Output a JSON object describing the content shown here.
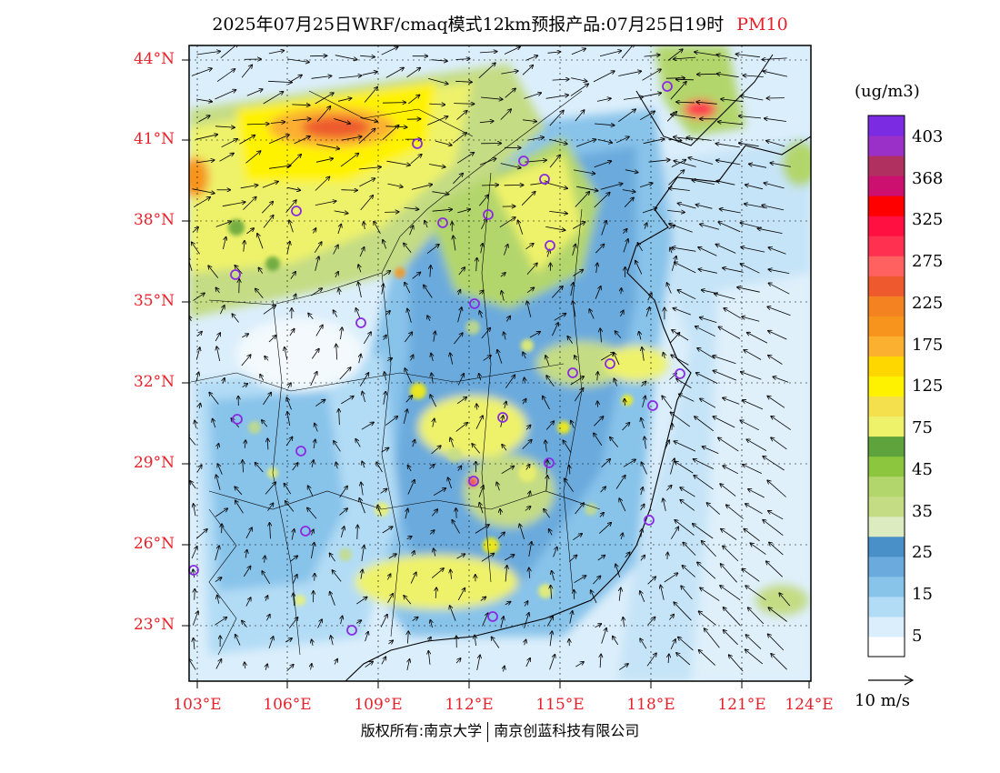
{
  "title": {
    "main": "2025年07月25日WRF/cmaq模式12km预报产品:07月25日19时",
    "pollutant": "PM10"
  },
  "colors": {
    "accent_red": "#e8202a",
    "station_marker": "#8a2be2"
  },
  "latitude_labels": [
    "44°N",
    "41°N",
    "38°N",
    "35°N",
    "32°N",
    "29°N",
    "26°N",
    "23°N"
  ],
  "longitude_labels": [
    "103°E",
    "106°E",
    "109°E",
    "112°E",
    "115°E",
    "118°E",
    "121°E",
    "124°E"
  ],
  "legend": {
    "unit": "(ug/m3)",
    "bins": [
      {
        "color": "#ffffff"
      },
      {
        "color": "#dbeefb"
      },
      {
        "color": "#b2dcf5"
      },
      {
        "color": "#88c3ea"
      },
      {
        "color": "#6aaadd"
      },
      {
        "color": "#4a90c8"
      },
      {
        "color": "#dcebc0"
      },
      {
        "color": "#c4dc84"
      },
      {
        "color": "#b3d66c"
      },
      {
        "color": "#8cc63f"
      },
      {
        "color": "#5ea33b"
      },
      {
        "color": "#eef26a"
      },
      {
        "color": "#f4e04c"
      },
      {
        "color": "#fff200"
      },
      {
        "color": "#ffd700"
      },
      {
        "color": "#fbb030"
      },
      {
        "color": "#f7941d"
      },
      {
        "color": "#f58220"
      },
      {
        "color": "#ee5a2d"
      },
      {
        "color": "#ff6060"
      },
      {
        "color": "#ff3050"
      },
      {
        "color": "#ff1040"
      },
      {
        "color": "#ff0000"
      },
      {
        "color": "#cc1070"
      },
      {
        "color": "#b03060"
      },
      {
        "color": "#9b30c8"
      },
      {
        "color": "#7b2be2"
      }
    ],
    "tick_labels": [
      "403",
      "368",
      "325",
      "275",
      "225",
      "175",
      "125",
      "75",
      "45",
      "35",
      "25",
      "15",
      "5"
    ]
  },
  "wind_reference": {
    "label": "10 m/s"
  },
  "copyright": {
    "left": "版权所有:南京大学",
    "right": "南京创蓝科技有限公司"
  }
}
